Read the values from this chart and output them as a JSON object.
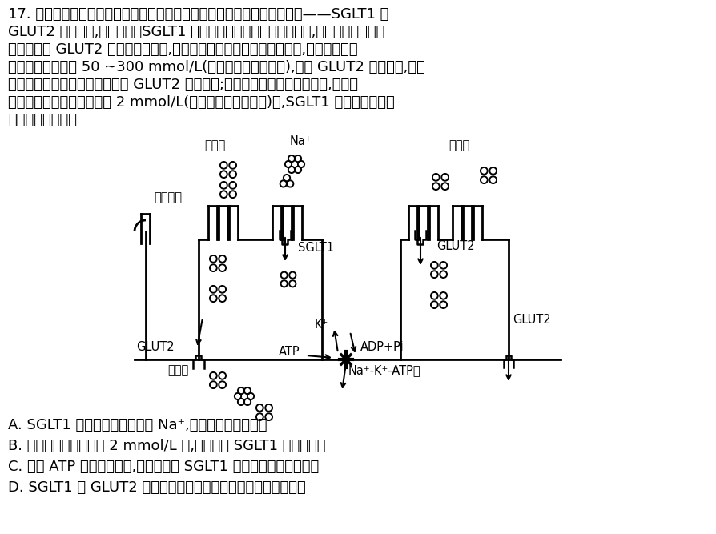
{
  "question_text_lines": [
    "17. 人肠腔中的葡萄糖经小肠上皮细胞吸收进入血液由两种特异性转运蛋白——SGLT1 和",
    "GLUT2 共同完成,如图所示。SGLT1 从肠腔中逆浓度梯度转运葡萄糖,小肠上皮细胞内的",
    "葡萄糖再经 GLUT2 转运进入组织液,然后进入血液。当进食一段时间后,小肠肠腔局部",
    "的葡萄糖浓度可达 50 ~300 mmol/L(高于小肠上皮细胞内),此时 GLUT2 数量增加,小肠",
    "上皮细胞吸收和输出葡萄糖都由 GLUT2 参与转运;当葡萄糖被大量快速吸收后,小肠肠",
    "腔局部的葡萄糖浓度降低到 2 mmol/L(低于小肠上皮细胞内)时,SGLT1 活性增强。下列",
    "相关说法正确的是"
  ],
  "options": [
    "A. SGLT1 能同时转运葡萄糖和 Na⁺,说明其不具有特异性",
    "B. 肠腔葡萄糖浓度降至 2 mmol/L 时,主要依赖 SGLT1 吸收葡萄糖",
    "C. 加入 ATP 水解酶抑制剂,会直接导致 SGLT1 运输葡萄糖的速率下降",
    "D. SGLT1 和 GLUT2 的作用都会降低膜两侧葡萄糖分子的浓度差"
  ],
  "bg_color": "#ffffff",
  "text_color": "#000000"
}
